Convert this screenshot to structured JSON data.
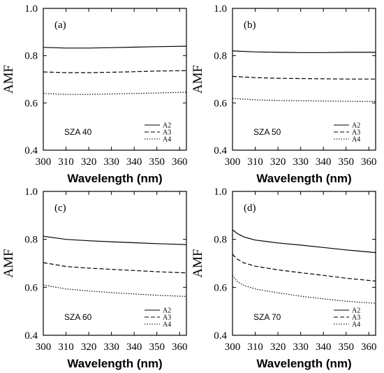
{
  "chart_data": [
    {
      "type": "line",
      "panel_label": "(a)",
      "annotation": "SZA 40",
      "xlabel": "Wavelength (nm)",
      "ylabel": "AMF",
      "xlim": [
        300,
        363
      ],
      "ylim": [
        0.4,
        1.0
      ],
      "xticks": [
        300,
        310,
        320,
        330,
        340,
        350,
        360
      ],
      "yticks": [
        0.4,
        0.6,
        0.8,
        1.0
      ],
      "xtick_labels": [
        "300",
        "310",
        "320",
        "330",
        "340",
        "350",
        "360"
      ],
      "ytick_labels": [
        "0.4",
        "0.6",
        "0.8",
        "1.0"
      ],
      "legend_position": "lower-right",
      "grid": false,
      "x": [
        300,
        310,
        320,
        330,
        340,
        350,
        363
      ],
      "series": [
        {
          "name": "A2",
          "style": "solid",
          "values": [
            0.835,
            0.832,
            0.832,
            0.834,
            0.836,
            0.838,
            0.84
          ]
        },
        {
          "name": "A3",
          "style": "dashed",
          "values": [
            0.731,
            0.728,
            0.728,
            0.73,
            0.732,
            0.735,
            0.737
          ]
        },
        {
          "name": "A4",
          "style": "dotted",
          "values": [
            0.64,
            0.636,
            0.636,
            0.638,
            0.64,
            0.642,
            0.645
          ]
        }
      ]
    },
    {
      "type": "line",
      "panel_label": "(b)",
      "annotation": "SZA 50",
      "xlabel": "Wavelength (nm)",
      "ylabel": "AMF",
      "xlim": [
        300,
        363
      ],
      "ylim": [
        0.4,
        1.0
      ],
      "xticks": [
        300,
        310,
        320,
        330,
        340,
        350,
        360
      ],
      "yticks": [
        0.4,
        0.6,
        0.8,
        1.0
      ],
      "xtick_labels": [
        "300",
        "310",
        "320",
        "330",
        "340",
        "350",
        "360"
      ],
      "ytick_labels": [
        "0.4",
        "0.6",
        "0.8",
        "1.0"
      ],
      "legend_position": "lower-right",
      "grid": false,
      "x": [
        300,
        310,
        320,
        330,
        340,
        350,
        363
      ],
      "series": [
        {
          "name": "A2",
          "style": "solid",
          "values": [
            0.82,
            0.816,
            0.814,
            0.813,
            0.813,
            0.814,
            0.814
          ]
        },
        {
          "name": "A3",
          "style": "dashed",
          "values": [
            0.712,
            0.707,
            0.704,
            0.703,
            0.702,
            0.701,
            0.701
          ]
        },
        {
          "name": "A4",
          "style": "dotted",
          "values": [
            0.619,
            0.613,
            0.61,
            0.609,
            0.608,
            0.607,
            0.606
          ]
        }
      ]
    },
    {
      "type": "line",
      "panel_label": "(c)",
      "annotation": "SZA 60",
      "xlabel": "Wavelength (nm)",
      "ylabel": "AMF",
      "xlim": [
        300,
        363
      ],
      "ylim": [
        0.4,
        1.0
      ],
      "xticks": [
        300,
        310,
        320,
        330,
        340,
        350,
        360
      ],
      "yticks": [
        0.4,
        0.6,
        0.8,
        1.0
      ],
      "xtick_labels": [
        "300",
        "310",
        "320",
        "330",
        "340",
        "350",
        "360"
      ],
      "ytick_labels": [
        "0.4",
        "0.6",
        "0.8",
        "1.0"
      ],
      "legend_position": "lower-right",
      "grid": false,
      "x": [
        300,
        310,
        320,
        330,
        340,
        350,
        363
      ],
      "series": [
        {
          "name": "A2",
          "style": "solid",
          "values": [
            0.813,
            0.8,
            0.794,
            0.79,
            0.786,
            0.782,
            0.778
          ]
        },
        {
          "name": "A3",
          "style": "dashed",
          "values": [
            0.703,
            0.687,
            0.68,
            0.675,
            0.67,
            0.665,
            0.66
          ]
        },
        {
          "name": "A4",
          "style": "dotted",
          "values": [
            0.61,
            0.593,
            0.585,
            0.578,
            0.572,
            0.567,
            0.562
          ]
        }
      ]
    },
    {
      "type": "line",
      "panel_label": "(d)",
      "annotation": "SZA 70",
      "xlabel": "Wavelength (nm)",
      "ylabel": "AMF",
      "xlim": [
        300,
        363
      ],
      "ylim": [
        0.4,
        1.0
      ],
      "xticks": [
        300,
        310,
        320,
        330,
        340,
        350,
        360
      ],
      "yticks": [
        0.4,
        0.6,
        0.8,
        1.0
      ],
      "xtick_labels": [
        "300",
        "310",
        "320",
        "330",
        "340",
        "350",
        "360"
      ],
      "ytick_labels": [
        "0.4",
        "0.6",
        "0.8",
        "1.0"
      ],
      "legend_position": "lower-right",
      "grid": false,
      "x": [
        300,
        302,
        305,
        310,
        320,
        330,
        340,
        350,
        363
      ],
      "series": [
        {
          "name": "A2",
          "style": "solid",
          "values": [
            0.84,
            0.825,
            0.81,
            0.797,
            0.785,
            0.776,
            0.766,
            0.756,
            0.745
          ]
        },
        {
          "name": "A3",
          "style": "dashed",
          "values": [
            0.738,
            0.718,
            0.702,
            0.688,
            0.673,
            0.661,
            0.65,
            0.638,
            0.626
          ]
        },
        {
          "name": "A4",
          "style": "dotted",
          "values": [
            0.65,
            0.625,
            0.608,
            0.593,
            0.577,
            0.563,
            0.552,
            0.542,
            0.533
          ]
        }
      ]
    }
  ]
}
